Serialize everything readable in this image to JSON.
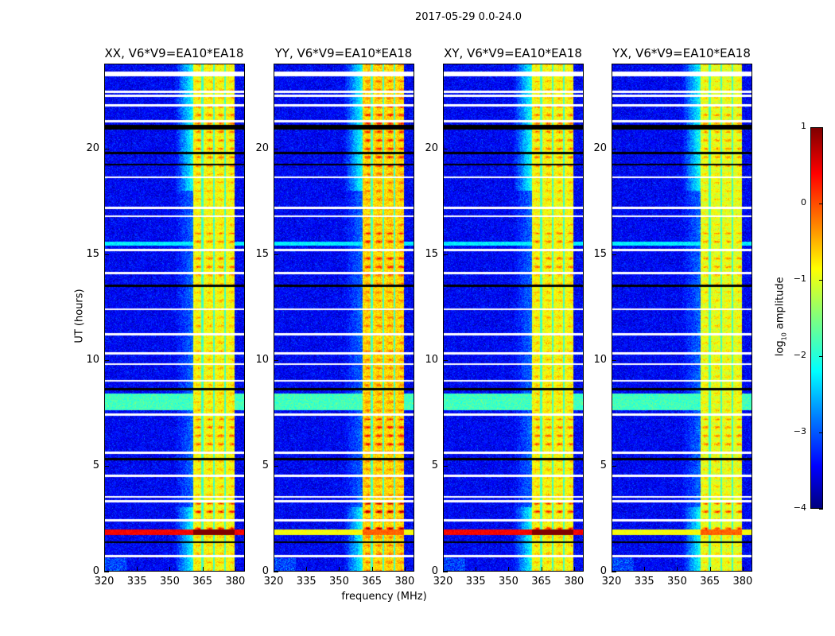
{
  "chart_data": {
    "type": "heatmap",
    "title": "2017-05-29 0.0-24.0",
    "panels": [
      {
        "title": "XX, V6*V9=EA10*EA18",
        "band_level": -0.9,
        "rfi_level": 0.4,
        "blob_gain": 1.0
      },
      {
        "title": "YY, V6*V9=EA10*EA18",
        "band_level": -0.7,
        "rfi_level": -0.9,
        "blob_gain": 1.3
      },
      {
        "title": "XY, V6*V9=EA10*EA18",
        "band_level": -0.9,
        "rfi_level": 0.4,
        "blob_gain": 1.0
      },
      {
        "title": "YX, V6*V9=EA10*EA18",
        "band_level": -1.0,
        "rfi_level": -0.9,
        "blob_gain": 0.9
      }
    ],
    "xlabel": "frequency (MHz)",
    "ylabel": "UT (hours)",
    "xlim": [
      320,
      384.4
    ],
    "ylim": [
      0,
      24
    ],
    "xticks": [
      "320",
      "335",
      "350",
      "365",
      "380"
    ],
    "yticks": [
      "0",
      "5",
      "10",
      "15",
      "20"
    ],
    "colorbar": {
      "label_main": "log",
      "label_sub": "10",
      "label_rest": " amplitude",
      "ticks": [
        "1",
        "0",
        "−1",
        "−2",
        "−3",
        "−4"
      ],
      "range": [
        -4,
        1
      ],
      "colormap": "jet"
    },
    "background_level": -3.4,
    "active_band_mhz": [
      360.7,
      380
    ],
    "channel_dividers_mhz": [
      365.1,
      370.5,
      375.6
    ],
    "rfi_band_hours": [
      1.7,
      1.95
    ],
    "flagged_white_hours": [
      23.6,
      23.5,
      22.7,
      22.5,
      22.06,
      21.3,
      18.65,
      17.2,
      16.8,
      15.2,
      14.1,
      12.4,
      11.2,
      10.3,
      9.8,
      9.0,
      7.4,
      5.6,
      4.5,
      3.5,
      3.3,
      2.4,
      0.7
    ],
    "flagged_black_hours": [
      21.0,
      20.95,
      21.1,
      19.8,
      19.25,
      13.5,
      8.6,
      5.3,
      1.35
    ]
  }
}
